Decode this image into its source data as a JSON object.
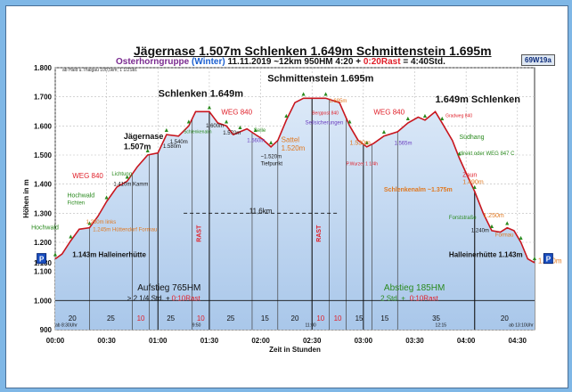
{
  "header": {
    "title": "Jägernase 1.507m Schlenken 1.649m Schmittenstein 1.695m",
    "subtitle_group": "Osterhorngruppe",
    "subtitle_season": "(Winter)",
    "subtitle_info": "11.11.2019  ~12km  950HM  4:20 +",
    "subtitle_rast": "0:20Rast",
    "subtitle_total": "= 4:40Std.",
    "badge": "69W19a",
    "note": "ab Hald u.Thalgau 100,5km; 1 1/2Std."
  },
  "colors": {
    "fill": "#a9c7ea",
    "fill_top": "#dce9f8",
    "profile_line": "#c8161e",
    "rast": "#e0202a",
    "green": "#2a8a1e",
    "orange": "#e07820",
    "frame": "#7fb7e6"
  },
  "chart_data": {
    "type": "area",
    "title": "Jägernase 1.507m Schlenken 1.649m Schmittenstein 1.695m",
    "xlabel": "Zeit in Stunden",
    "ylabel": "Höhen in m",
    "xlim": [
      0,
      280
    ],
    "ylim": [
      900,
      1800
    ],
    "x_ticks": [
      {
        "t": 0,
        "label": "00:00"
      },
      {
        "t": 30,
        "label": "00:30"
      },
      {
        "t": 60,
        "label": "01:00"
      },
      {
        "t": 90,
        "label": "01:30"
      },
      {
        "t": 120,
        "label": "02:00"
      },
      {
        "t": 150,
        "label": "02:30"
      },
      {
        "t": 180,
        "label": "03:00"
      },
      {
        "t": 210,
        "label": "03:30"
      },
      {
        "t": 240,
        "label": "04:00"
      },
      {
        "t": 270,
        "label": "04:30"
      }
    ],
    "y_ticks": [
      {
        "v": 900,
        "label": "900"
      },
      {
        "v": 1000,
        "label": "1.000"
      },
      {
        "v": 1100,
        "label": "1.100"
      },
      {
        "v": 1130,
        "label": "1.130"
      },
      {
        "v": 1200,
        "label": "1.200"
      },
      {
        "v": 1300,
        "label": "1.300"
      },
      {
        "v": 1400,
        "label": "1.400"
      },
      {
        "v": 1500,
        "label": "1.500"
      },
      {
        "v": 1600,
        "label": "1.600"
      },
      {
        "v": 1700,
        "label": "1.700"
      },
      {
        "v": 1800,
        "label": "1.800"
      }
    ],
    "profile": [
      [
        0,
        1143
      ],
      [
        4,
        1160
      ],
      [
        9,
        1205
      ],
      [
        14,
        1245
      ],
      [
        20,
        1250
      ],
      [
        25,
        1290
      ],
      [
        30,
        1340
      ],
      [
        36,
        1390
      ],
      [
        42,
        1410
      ],
      [
        48,
        1460
      ],
      [
        54,
        1500
      ],
      [
        60,
        1507
      ],
      [
        65,
        1570
      ],
      [
        72,
        1565
      ],
      [
        78,
        1600
      ],
      [
        82,
        1649
      ],
      [
        90,
        1649
      ],
      [
        95,
        1610
      ],
      [
        100,
        1600
      ],
      [
        104,
        1570
      ],
      [
        108,
        1580
      ],
      [
        112,
        1590
      ],
      [
        117,
        1570
      ],
      [
        121,
        1555
      ],
      [
        126,
        1528
      ],
      [
        130,
        1550
      ],
      [
        135,
        1620
      ],
      [
        140,
        1680
      ],
      [
        145,
        1695
      ],
      [
        150,
        1695
      ],
      [
        158,
        1695
      ],
      [
        166,
        1680
      ],
      [
        172,
        1600
      ],
      [
        177,
        1550
      ],
      [
        182,
        1528
      ],
      [
        186,
        1540
      ],
      [
        192,
        1565
      ],
      [
        200,
        1580
      ],
      [
        206,
        1610
      ],
      [
        212,
        1630
      ],
      [
        216,
        1620
      ],
      [
        222,
        1649
      ],
      [
        226,
        1610
      ],
      [
        232,
        1550
      ],
      [
        236,
        1490
      ],
      [
        241,
        1425
      ],
      [
        245,
        1375
      ],
      [
        250,
        1300
      ],
      [
        255,
        1240
      ],
      [
        260,
        1235
      ],
      [
        264,
        1250
      ],
      [
        268,
        1240
      ],
      [
        272,
        1200
      ],
      [
        276,
        1143
      ],
      [
        280,
        1130
      ]
    ],
    "vlines": [
      60,
      90,
      150,
      180,
      245
    ],
    "segments": [
      {
        "from": 0,
        "to": 20,
        "label": "20"
      },
      {
        "from": 20,
        "to": 45,
        "label": "25"
      },
      {
        "from": 45,
        "to": 55,
        "label": "10"
      },
      {
        "from": 55,
        "to": 80,
        "label": "25"
      },
      {
        "from": 80,
        "to": 90,
        "label": "10"
      },
      {
        "from": 90,
        "to": 115,
        "label": "25"
      },
      {
        "from": 115,
        "to": 130,
        "label": "15"
      },
      {
        "from": 130,
        "to": 150,
        "label": "20"
      },
      {
        "from": 150,
        "to": 160,
        "label": "10"
      },
      {
        "from": 160,
        "to": 170,
        "label": "10"
      },
      {
        "from": 170,
        "to": 185,
        "label": "15"
      },
      {
        "from": 185,
        "to": 200,
        "label": "15"
      },
      {
        "from": 200,
        "to": 245,
        "label": "35"
      },
      {
        "from": 245,
        "to": 280,
        "label": "20"
      }
    ],
    "rast_marks": [
      {
        "t": 85,
        "label": "RAST"
      },
      {
        "t": 155,
        "label": "RAST"
      }
    ],
    "annotations": [
      {
        "t": 85,
        "v": 1700,
        "text": "Schlenken 1.649m",
        "color": "#111",
        "size": 11,
        "weight": "bold",
        "anchor": "middle"
      },
      {
        "t": 155,
        "v": 1752,
        "text": "Schmittenstein 1.695m",
        "color": "#111",
        "size": 11,
        "weight": "bold",
        "anchor": "middle"
      },
      {
        "t": 222,
        "v": 1680,
        "text": "1.649m Schlenken",
        "color": "#111",
        "size": 11,
        "weight": "bold",
        "anchor": "start"
      },
      {
        "t": 40,
        "v": 1555,
        "text": "Jägernase",
        "color": "#111",
        "size": 9,
        "weight": "bold",
        "anchor": "start"
      },
      {
        "t": 40,
        "v": 1520,
        "text": "1.507m",
        "color": "#111",
        "size": 9,
        "weight": "bold",
        "anchor": "start"
      },
      {
        "t": 63,
        "v": 1525,
        "text": "1.580m",
        "color": "#111",
        "size": 6,
        "weight": "normal",
        "anchor": "start"
      },
      {
        "t": 67,
        "v": 1540,
        "text": "1.540m",
        "color": "#111",
        "size": 6,
        "weight": "normal",
        "anchor": "start"
      },
      {
        "t": 75,
        "v": 1575,
        "text": "Schlenkenalm",
        "color": "#2a8a1e",
        "size": 5,
        "weight": "normal",
        "anchor": "start"
      },
      {
        "t": 88,
        "v": 1595,
        "text": "1.600m",
        "color": "#111",
        "size": 6,
        "weight": "normal",
        "anchor": "start"
      },
      {
        "t": 98,
        "v": 1570,
        "text": "1.570m",
        "color": "#111",
        "size": 6,
        "weight": "normal",
        "anchor": "start"
      },
      {
        "t": 112,
        "v": 1545,
        "text": "1.560m",
        "color": "#6b3fc0",
        "size": 6,
        "weight": "normal",
        "anchor": "start"
      },
      {
        "t": 116,
        "v": 1580,
        "text": "Seile",
        "color": "#2a8a1e",
        "size": 6,
        "weight": "normal",
        "anchor": "start"
      },
      {
        "t": 97,
        "v": 1640,
        "text": "WEG 840",
        "color": "#e0202a",
        "size": 8,
        "weight": "normal",
        "anchor": "start"
      },
      {
        "t": 120,
        "v": 1490,
        "text": "~1.520m",
        "color": "#111",
        "size": 6,
        "weight": "normal",
        "anchor": "start"
      },
      {
        "t": 120,
        "v": 1465,
        "text": "Tiefpunkt",
        "color": "#111",
        "size": 6,
        "weight": "normal",
        "anchor": "start"
      },
      {
        "t": 132,
        "v": 1545,
        "text": "Sattel",
        "color": "#e07820",
        "size": 8,
        "weight": "normal",
        "anchor": "start"
      },
      {
        "t": 132,
        "v": 1515,
        "text": "1.520m",
        "color": "#e07820",
        "size": 8,
        "weight": "normal",
        "anchor": "start"
      },
      {
        "t": 150,
        "v": 1640,
        "text": "Bergpost 840",
        "color": "#e0202a",
        "size": 5,
        "weight": "normal",
        "anchor": "start"
      },
      {
        "t": 146,
        "v": 1605,
        "text": "Seilsicherungen",
        "color": "#6b3fc0",
        "size": 6,
        "weight": "normal",
        "anchor": "start"
      },
      {
        "t": 160,
        "v": 1680,
        "text": "1.695m",
        "color": "#e07820",
        "size": 6,
        "weight": "normal",
        "anchor": "start"
      },
      {
        "t": 186,
        "v": 1640,
        "text": "WEG 840",
        "color": "#e0202a",
        "size": 8,
        "weight": "normal",
        "anchor": "start"
      },
      {
        "t": 172,
        "v": 1535,
        "text": "1.530m",
        "color": "#e07820",
        "size": 7,
        "weight": "normal",
        "anchor": "start"
      },
      {
        "t": 170,
        "v": 1465,
        "text": "P.Wurzer 1 1/4h",
        "color": "#e0202a",
        "size": 5,
        "weight": "normal",
        "anchor": "start"
      },
      {
        "t": 198,
        "v": 1535,
        "text": "1.565m",
        "color": "#6b3fc0",
        "size": 6,
        "weight": "normal",
        "anchor": "start"
      },
      {
        "t": 228,
        "v": 1630,
        "text": "Gradweg 840",
        "color": "#e0202a",
        "size": 5,
        "weight": "normal",
        "anchor": "start"
      },
      {
        "t": 236,
        "v": 1555,
        "text": "Südhang",
        "color": "#2a8a1e",
        "size": 7,
        "weight": "normal",
        "anchor": "start"
      },
      {
        "t": 236,
        "v": 1500,
        "text": "direkt oder WEG 847 C",
        "color": "#2a8a1e",
        "size": 6,
        "weight": "normal",
        "anchor": "start"
      },
      {
        "t": 238,
        "v": 1425,
        "text": "Zaun",
        "color": "#e0202a",
        "size": 7,
        "weight": "normal",
        "anchor": "start"
      },
      {
        "t": 238,
        "v": 1400,
        "text": "1.490m",
        "color": "#e07820",
        "size": 7,
        "weight": "normal",
        "anchor": "start"
      },
      {
        "t": 192,
        "v": 1375,
        "text": "Schlenkenalm ~1.375m",
        "color": "#e07820",
        "size": 7,
        "weight": "bold",
        "anchor": "start"
      },
      {
        "t": 230,
        "v": 1280,
        "text": "Forststraße",
        "color": "#2a8a1e",
        "size": 6,
        "weight": "normal",
        "anchor": "start"
      },
      {
        "t": 250,
        "v": 1285,
        "text": "1.250m",
        "color": "#e07820",
        "size": 7,
        "weight": "normal",
        "anchor": "start"
      },
      {
        "t": 243,
        "v": 1235,
        "text": "1.240m",
        "color": "#111",
        "size": 6,
        "weight": "normal",
        "anchor": "start"
      },
      {
        "t": 257,
        "v": 1220,
        "text": "Formau",
        "color": "#e07820",
        "size": 6,
        "weight": "normal",
        "anchor": "start"
      },
      {
        "t": 230,
        "v": 1150,
        "text": "Halleinerhütte 1.143m",
        "color": "#111",
        "size": 8,
        "weight": "bold",
        "anchor": "start"
      },
      {
        "t": 282,
        "v": 1128,
        "text": "1.130m",
        "color": "#e07820",
        "size": 8,
        "weight": "normal",
        "anchor": "start"
      },
      {
        "t": 10,
        "v": 1150,
        "text": "1.143m Halleinerhütte",
        "color": "#111",
        "size": 8,
        "weight": "bold",
        "anchor": "start"
      },
      {
        "t": 18,
        "v": 1265,
        "text": "1.250m links",
        "color": "#e07820",
        "size": 6,
        "weight": "normal",
        "anchor": "start"
      },
      {
        "t": 22,
        "v": 1238,
        "text": "1.245m Hüttendorf Formau",
        "color": "#e07820",
        "size": 6,
        "weight": "normal",
        "anchor": "start"
      },
      {
        "t": 10,
        "v": 1420,
        "text": "WEG 840",
        "color": "#e0202a",
        "size": 8,
        "weight": "normal",
        "anchor": "start"
      },
      {
        "t": 7,
        "v": 1355,
        "text": "Hochwald",
        "color": "#2a8a1e",
        "size": 7,
        "weight": "normal",
        "anchor": "start"
      },
      {
        "t": 7,
        "v": 1330,
        "text": "Fichten",
        "color": "#2a8a1e",
        "size": 6,
        "weight": "normal",
        "anchor": "start"
      },
      {
        "t": -14,
        "v": 1245,
        "text": "Hochwald",
        "color": "#2a8a1e",
        "size": 7,
        "weight": "normal",
        "anchor": "start"
      },
      {
        "t": 33,
        "v": 1430,
        "text": "Lichtung",
        "color": "#2a8a1e",
        "size": 6,
        "weight": "normal",
        "anchor": "start"
      },
      {
        "t": 34,
        "v": 1395,
        "text": "1.410m Kamm",
        "color": "#111",
        "size": 6,
        "weight": "normal",
        "anchor": "start"
      },
      {
        "t": 120,
        "v": 1300,
        "text": "11,6km",
        "color": "#111",
        "size": 8,
        "weight": "normal",
        "anchor": "middle"
      },
      {
        "t": 48,
        "v": 1035,
        "text": "Aufstieg 765HM",
        "color": "#111",
        "size": 10,
        "weight": "normal",
        "anchor": "start"
      },
      {
        "t": 42,
        "v": 1000,
        "text": "> 2 1/4 Std. +",
        "color": "#111",
        "size": 8,
        "weight": "normal",
        "anchor": "start"
      },
      {
        "t": 68,
        "v": 1000,
        "text": "0:10Rast",
        "color": "#e0202a",
        "size": 8,
        "weight": "normal",
        "anchor": "start"
      },
      {
        "t": 192,
        "v": 1035,
        "text": "Abstieg 185HM",
        "color": "#2a8a1e",
        "size": 10,
        "weight": "normal",
        "anchor": "start"
      },
      {
        "t": 190,
        "v": 1000,
        "text": "2 Std. +",
        "color": "#2a8a1e",
        "size": 8,
        "weight": "normal",
        "anchor": "start"
      },
      {
        "t": 207,
        "v": 1000,
        "text": "0:10Rast",
        "color": "#e0202a",
        "size": 8,
        "weight": "normal",
        "anchor": "start"
      },
      {
        "t": 80,
        "v": 910,
        "text": "9:50",
        "color": "#111",
        "size": 5,
        "weight": "normal",
        "anchor": "start"
      },
      {
        "t": 146,
        "v": 910,
        "text": "11:00",
        "color": "#111",
        "size": 5,
        "weight": "normal",
        "anchor": "start"
      },
      {
        "t": 222,
        "v": 910,
        "text": "12:15",
        "color": "#111",
        "size": 5,
        "weight": "normal",
        "anchor": "start"
      },
      {
        "t": 0,
        "v": 910,
        "text": "ab 8:30Uhr",
        "color": "#111",
        "size": 5,
        "weight": "normal",
        "anchor": "start"
      },
      {
        "t": 265,
        "v": 910,
        "text": "ab 13:10Uhr",
        "color": "#111",
        "size": 5,
        "weight": "normal",
        "anchor": "start"
      }
    ],
    "parking": [
      {
        "t": -8,
        "v": 1143,
        "label": "P"
      },
      {
        "t": 288,
        "v": 1143,
        "label": "P"
      }
    ]
  }
}
